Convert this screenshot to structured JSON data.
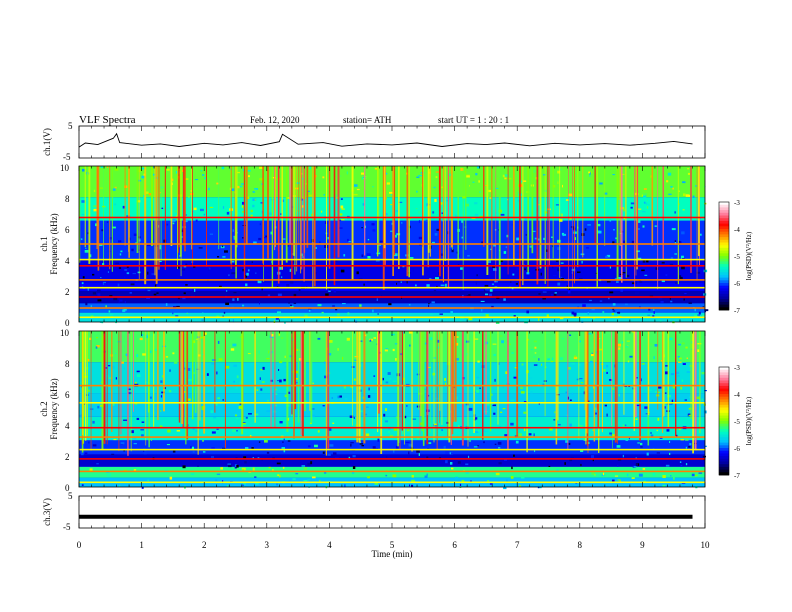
{
  "header": {
    "title": "VLF  Spectra",
    "date": "Feb. 12, 2020",
    "station": "station= ATH",
    "start_ut": "start  UT  =   1  : 20 : 1"
  },
  "chart_data": [
    {
      "type": "line",
      "panel": "ch1-waveform",
      "ylabel": "ch.1(V)",
      "ylim": [
        -5,
        5
      ],
      "yticks": [
        "5",
        "-5"
      ],
      "xlim": [
        0,
        10
      ],
      "series": [
        {
          "x": [
            0,
            0.1,
            0.3,
            0.55,
            0.6,
            0.65,
            1.0,
            1.3,
            1.6,
            2.0,
            2.3,
            2.6,
            2.9,
            3.2,
            3.25,
            3.5,
            3.9,
            4.2,
            4.6,
            5.0,
            5.4,
            5.8,
            6.2,
            6.5,
            6.8,
            7.2,
            7.6,
            8.0,
            8.4,
            8.8,
            9.2,
            9.5,
            9.8
          ],
          "y": [
            -1.6,
            -0.3,
            -0.8,
            1.2,
            2.6,
            -0.2,
            -1.0,
            -0.6,
            -1.4,
            -0.4,
            -0.9,
            -0.2,
            -1.1,
            0.1,
            2.4,
            -0.7,
            -0.2,
            -1.3,
            -0.6,
            -0.9,
            -0.3,
            -1.4,
            -0.5,
            -0.8,
            -0.3,
            -1.2,
            -0.4,
            -0.9,
            -0.5,
            -1.0,
            -0.4,
            0.2,
            -0.6
          ]
        }
      ]
    },
    {
      "type": "heatmap",
      "panel": "ch1-spectrogram",
      "ylabel": "ch.1",
      "ylabel2": "Frequency  (kHz)",
      "ylim": [
        0,
        10
      ],
      "yticks": [
        "0",
        "2",
        "4",
        "6",
        "8",
        "10"
      ],
      "xlim": [
        0,
        10
      ],
      "colorbar": {
        "label": "log(PSD)(V²/Hz)",
        "range": [
          -7,
          -3
        ],
        "ticks": [
          "-3",
          "-4",
          "-5",
          "-6",
          "-7"
        ]
      },
      "bands": [
        {
          "f0": 0.0,
          "f1": 0.6,
          "level": -5.6
        },
        {
          "f0": 0.6,
          "f1": 1.2,
          "level": -6.0
        },
        {
          "f0": 1.2,
          "f1": 2.0,
          "level": -6.5
        },
        {
          "f0": 2.0,
          "f1": 2.5,
          "level": -6.2
        },
        {
          "f0": 2.5,
          "f1": 4.0,
          "level": -6.3
        },
        {
          "f0": 4.0,
          "f1": 6.5,
          "level": -6.1
        },
        {
          "f0": 6.5,
          "f1": 8.0,
          "level": -5.4
        },
        {
          "f0": 8.0,
          "f1": 10.0,
          "level": -5.1
        }
      ],
      "lines_khz": [
        0.3,
        0.9,
        1.6,
        2.2,
        2.7,
        3.6,
        4.0,
        5.0,
        6.7
      ]
    },
    {
      "type": "heatmap",
      "panel": "ch2-spectrogram",
      "ylabel": "ch.2",
      "ylabel2": "Frequency  (kHz)",
      "ylim": [
        0,
        10
      ],
      "yticks": [
        "0",
        "2",
        "4",
        "6",
        "8",
        "10"
      ],
      "xlim": [
        0,
        10
      ],
      "colorbar": {
        "label": "log(PSD)(V²/Hz)",
        "range": [
          -7,
          -3
        ],
        "ticks": [
          "-3",
          "-4",
          "-5",
          "-6",
          "-7"
        ]
      },
      "bands": [
        {
          "f0": 0.0,
          "f1": 0.6,
          "level": -5.8
        },
        {
          "f0": 0.6,
          "f1": 1.3,
          "level": -5.3
        },
        {
          "f0": 1.3,
          "f1": 2.1,
          "level": -6.4
        },
        {
          "f0": 2.1,
          "f1": 3.0,
          "level": -6.1
        },
        {
          "f0": 3.0,
          "f1": 4.5,
          "level": -5.5
        },
        {
          "f0": 4.5,
          "f1": 6.0,
          "level": -5.7
        },
        {
          "f0": 6.0,
          "f1": 8.0,
          "level": -5.6
        },
        {
          "f0": 8.0,
          "f1": 10.0,
          "level": -5.2
        }
      ],
      "lines_khz": [
        0.3,
        1.0,
        1.8,
        2.4,
        3.2,
        3.8,
        5.4,
        6.5
      ]
    },
    {
      "type": "line",
      "panel": "ch3-waveform",
      "ylabel": "ch.3(V)",
      "ylim": [
        -5,
        5
      ],
      "yticks": [
        "5",
        "-5"
      ],
      "xlim": [
        0,
        10
      ],
      "xlabel": "Time  (min)",
      "xticks": [
        "0",
        "1",
        "2",
        "3",
        "4",
        "5",
        "6",
        "7",
        "8",
        "9",
        "10"
      ],
      "series": [
        {
          "x": [
            0,
            9.8
          ],
          "y": [
            -1.5,
            -1.5
          ]
        }
      ]
    }
  ],
  "colors": {
    "colormap": [
      "#000000",
      "#0000a0",
      "#0000ff",
      "#00c0ff",
      "#00ffc0",
      "#80ff00",
      "#ffff00",
      "#ff8000",
      "#ff0000",
      "#ff80a0",
      "#ffffff"
    ]
  }
}
